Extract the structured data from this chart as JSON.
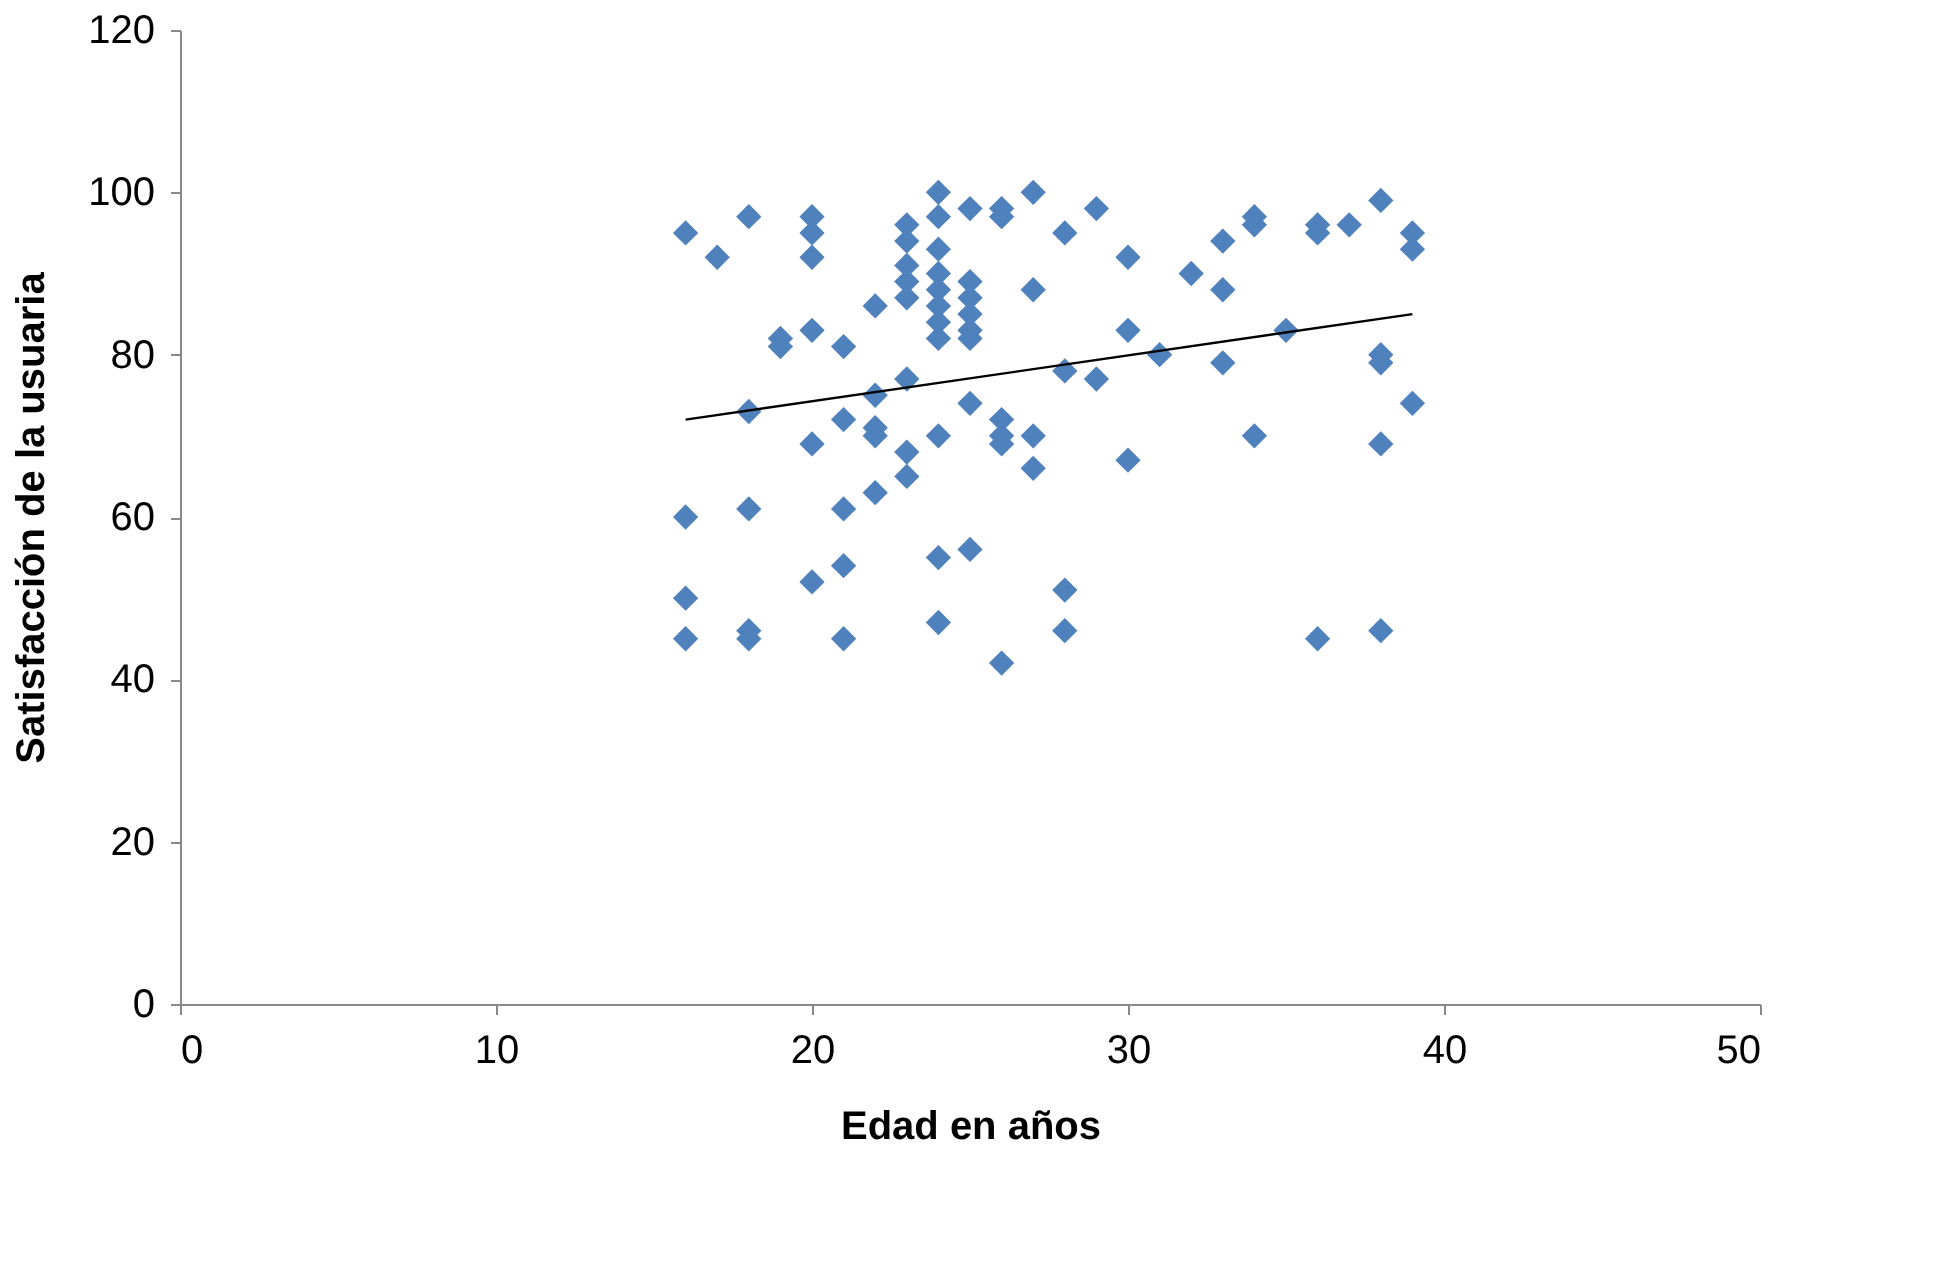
{
  "chart_data": {
    "type": "scatter",
    "xlabel": "Edad en años",
    "ylabel": "Satisfacción de la usuaria",
    "xlim": [
      0,
      50
    ],
    "xticks": [
      0,
      10,
      20,
      30,
      40,
      50
    ],
    "ylim": [
      0,
      120
    ],
    "yticks": [
      0,
      20,
      40,
      60,
      80,
      100,
      120
    ],
    "grid": false,
    "marker": "diamond",
    "series": [
      {
        "color": "#4f81bd",
        "x": [
          16,
          16,
          16,
          16,
          17,
          18,
          18,
          18,
          18,
          18,
          19,
          19,
          20,
          20,
          20,
          20,
          20,
          20,
          21,
          21,
          21,
          21,
          21,
          22,
          22,
          22,
          22,
          22,
          23,
          23,
          23,
          23,
          23,
          23,
          23,
          23,
          24,
          24,
          24,
          24,
          24,
          24,
          24,
          24,
          24,
          24,
          24,
          25,
          25,
          25,
          25,
          25,
          25,
          25,
          25,
          26,
          26,
          26,
          26,
          26,
          26,
          27,
          27,
          27,
          27,
          28,
          28,
          28,
          28,
          29,
          29,
          30,
          30,
          30,
          31,
          32,
          33,
          33,
          33,
          34,
          34,
          34,
          35,
          36,
          36,
          36,
          37,
          38,
          38,
          38,
          38,
          38,
          39,
          39,
          39
        ],
        "values": [
          95,
          60,
          50,
          45,
          92,
          97,
          73,
          61,
          46,
          45,
          82,
          81,
          97,
          95,
          92,
          83,
          69,
          52,
          81,
          72,
          61,
          54,
          45,
          86,
          75,
          71,
          70,
          63,
          96,
          94,
          91,
          89,
          87,
          77,
          68,
          65,
          100,
          97,
          93,
          90,
          88,
          86,
          84,
          82,
          70,
          55,
          47,
          98,
          89,
          87,
          85,
          83,
          82,
          74,
          56,
          98,
          97,
          72,
          70,
          69,
          42,
          100,
          88,
          70,
          66,
          95,
          78,
          51,
          46,
          98,
          77,
          92,
          83,
          67,
          80,
          90,
          94,
          88,
          79,
          97,
          96,
          70,
          83,
          96,
          95,
          45,
          96,
          99,
          80,
          79,
          69,
          46,
          95,
          93,
          74
        ]
      },
      {
        "type": "line",
        "marker": "none",
        "color": "#000000",
        "x": [
          16,
          39
        ],
        "values": [
          72,
          85
        ]
      }
    ]
  }
}
